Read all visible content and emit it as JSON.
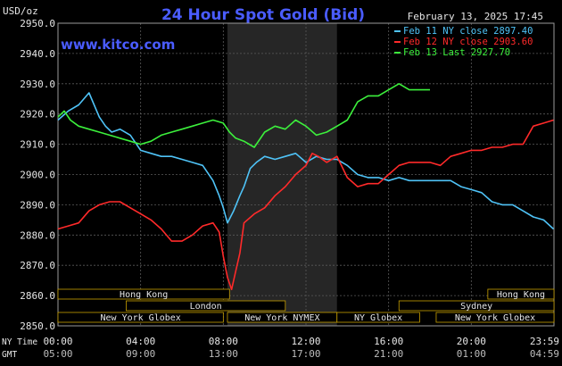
{
  "header": {
    "unit": "USD/oz",
    "title": "24 Hour Spot Gold (Bid)",
    "timestamp": "February 13, 2025 17:45",
    "watermark": "www.kitco.com"
  },
  "legend": [
    {
      "label": "Feb 11 NY close 2897.40",
      "color": "#4fc3f7"
    },
    {
      "label": "Feb 12 NY close 2903.60",
      "color": "#ff2a2a"
    },
    {
      "label": "Feb 13 Last 2927.70",
      "color": "#3cf03c"
    }
  ],
  "colors": {
    "background": "#000000",
    "plot_border": "#9a9a9a",
    "grid": "#5a5a5a",
    "title": "#4a5cff",
    "text": "#e6e6e6",
    "session_box": "#c8a000",
    "highlight_band": "#262626"
  },
  "sessions": [
    {
      "label": "Hong Kong",
      "start_h": 0,
      "end_h": 8.3,
      "row": 0
    },
    {
      "label": "Hong Kong",
      "start_h": 20.8,
      "end_h": 24.0,
      "row": 0
    },
    {
      "label": "London",
      "start_h": 3.3,
      "end_h": 11.0,
      "row": 1
    },
    {
      "label": "Sydney",
      "start_h": 16.5,
      "end_h": 24.0,
      "row": 1
    },
    {
      "label": "New York Globex",
      "start_h": 0,
      "end_h": 8.0,
      "row": 2
    },
    {
      "label": "New York NYMEX",
      "start_h": 8.2,
      "end_h": 13.5,
      "row": 2
    },
    {
      "label": "NY Globex",
      "start_h": 13.5,
      "end_h": 17.5,
      "row": 2
    },
    {
      "label": "New York Globex",
      "start_h": 18.3,
      "end_h": 24.0,
      "row": 2
    }
  ],
  "time_rows": [
    {
      "label": "NY Time",
      "ticks": [
        "00:00",
        "04:00",
        "08:00",
        "12:00",
        "16:00",
        "20:00",
        "23:59"
      ]
    },
    {
      "label": "GMT",
      "ticks": [
        "05:00",
        "09:00",
        "13:00",
        "17:00",
        "21:00",
        "01:00",
        "04:59"
      ]
    }
  ],
  "chart_data": {
    "type": "line",
    "title": "24 Hour Spot Gold (Bid)",
    "ylabel": "USD/oz",
    "ylim": [
      2850,
      2950
    ],
    "yticks": [
      "2950.0",
      "2940.0",
      "2930.0",
      "2920.0",
      "2910.0",
      "2900.0",
      "2890.0",
      "2880.0",
      "2870.0",
      "2860.0",
      "2850.0"
    ],
    "xlim": [
      0,
      24
    ],
    "x_unit": "hours (NY time)",
    "highlight_band": [
      8.2,
      13.5
    ],
    "grid": true,
    "legend_position": "top-right",
    "series": [
      {
        "name": "Feb 11 NY close 2897.40",
        "color": "#4fc3f7",
        "x": [
          0,
          0.5,
          1.0,
          1.5,
          2.0,
          2.3,
          2.6,
          3.0,
          3.5,
          4.0,
          4.5,
          5.0,
          5.5,
          6.0,
          6.5,
          7.0,
          7.5,
          7.8,
          8.0,
          8.2,
          8.5,
          8.8,
          9.0,
          9.3,
          9.6,
          10.0,
          10.5,
          11.0,
          11.5,
          12.0,
          12.5,
          13.0,
          13.5,
          14.0,
          14.5,
          15.0,
          15.5,
          16.0,
          16.5,
          17.0,
          17.5,
          18.0,
          18.5,
          19.0,
          19.5,
          20.0,
          20.5,
          21.0,
          21.5,
          22.0,
          22.5,
          23.0,
          23.5,
          23.98
        ],
        "y": [
          2918,
          2921,
          2923,
          2927,
          2919,
          2916,
          2914,
          2915,
          2913,
          2908,
          2907,
          2906,
          2906,
          2905,
          2904,
          2903,
          2898,
          2893,
          2889,
          2884,
          2888,
          2893,
          2896,
          2902,
          2904,
          2906,
          2905,
          2906,
          2907,
          2904,
          2906,
          2905,
          2905,
          2903,
          2900,
          2899,
          2899,
          2898,
          2899,
          2898,
          2898,
          2898,
          2898,
          2898,
          2896,
          2895,
          2894,
          2891,
          2890,
          2890,
          2888,
          2886,
          2885,
          2882
        ]
      },
      {
        "name": "Feb 12 NY close 2903.60",
        "color": "#ff2a2a",
        "x": [
          0,
          0.5,
          1.0,
          1.5,
          2.0,
          2.5,
          3.0,
          3.5,
          4.0,
          4.5,
          5.0,
          5.5,
          6.0,
          6.5,
          7.0,
          7.5,
          7.8,
          8.0,
          8.2,
          8.4,
          8.6,
          8.8,
          9.0,
          9.5,
          10.0,
          10.5,
          11.0,
          11.5,
          12.0,
          12.3,
          12.6,
          13.0,
          13.5,
          14.0,
          14.5,
          15.0,
          15.5,
          16.0,
          16.5,
          17.0,
          17.5,
          18.0,
          18.5,
          19.0,
          19.5,
          20.0,
          20.5,
          21.0,
          21.5,
          22.0,
          22.5,
          23.0,
          23.5,
          23.98
        ],
        "y": [
          2882,
          2883,
          2884,
          2888,
          2890,
          2891,
          2891,
          2889,
          2887,
          2885,
          2882,
          2878,
          2878,
          2880,
          2883,
          2884,
          2881,
          2873,
          2866,
          2862,
          2868,
          2874,
          2884,
          2887,
          2889,
          2893,
          2896,
          2900,
          2903,
          2907,
          2906,
          2904,
          2906,
          2899,
          2896,
          2897,
          2897,
          2900,
          2903,
          2904,
          2904,
          2904,
          2903,
          2906,
          2907,
          2908,
          2908,
          2909,
          2909,
          2910,
          2910,
          2916,
          2917,
          2918
        ]
      },
      {
        "name": "Feb 13 Last 2927.70",
        "color": "#3cf03c",
        "x": [
          0,
          0.3,
          0.6,
          1.0,
          1.5,
          2.0,
          2.5,
          3.0,
          3.5,
          4.0,
          4.5,
          5.0,
          5.5,
          6.0,
          6.5,
          7.0,
          7.5,
          8.0,
          8.3,
          8.6,
          9.0,
          9.5,
          10.0,
          10.5,
          11.0,
          11.5,
          12.0,
          12.5,
          13.0,
          13.5,
          14.0,
          14.5,
          15.0,
          15.5,
          16.0,
          16.5,
          17.0,
          17.5,
          18.0
        ],
        "y": [
          2919,
          2921,
          2918,
          2916,
          2915,
          2914,
          2913,
          2912,
          2911,
          2910,
          2911,
          2913,
          2914,
          2915,
          2916,
          2917,
          2918,
          2917,
          2914,
          2912,
          2911,
          2909,
          2914,
          2916,
          2915,
          2918,
          2916,
          2913,
          2914,
          2916,
          2918,
          2924,
          2926,
          2926,
          2928,
          2930,
          2928,
          2928,
          2928
        ]
      }
    ]
  }
}
